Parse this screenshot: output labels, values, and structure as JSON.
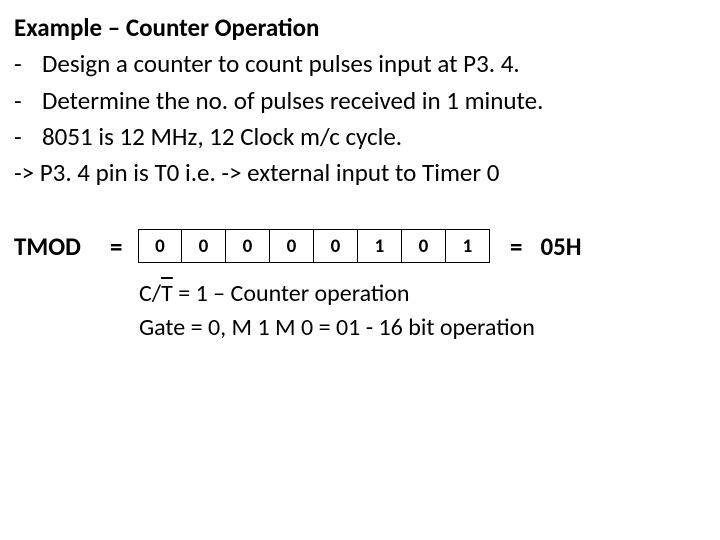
{
  "title": "Example – Counter Operation",
  "bullets": [
    "Design a counter to count pulses input at P3. 4.",
    "Determine the no. of pulses received in 1 minute.",
    "8051 is 12 MHz, 12 Clock  m/c cycle."
  ],
  "arrow_line": "-> P3. 4 pin is T0 i.e. -> external input to Timer 0",
  "tmod": {
    "label": "TMOD",
    "eq1": "=",
    "bits": [
      "0",
      "0",
      "0",
      "0",
      "0",
      "1",
      "0",
      "1"
    ],
    "eq2": "=",
    "result": "05H"
  },
  "explain_line1_pre": "C/",
  "explain_line1_ov": "T",
  "explain_line1_post": " = 1 – Counter operation",
  "explain_line2": "Gate = 0,  M 1  M 0  = 01   -   16 bit operation"
}
